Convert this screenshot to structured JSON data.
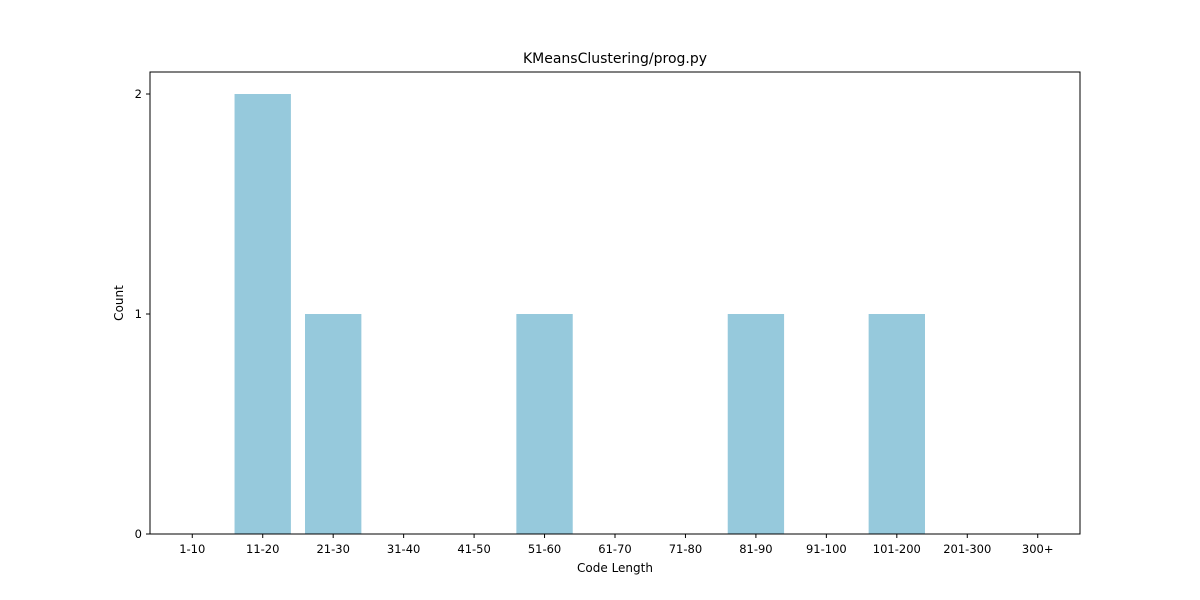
{
  "chart_data": {
    "type": "bar",
    "title": "KMeansClustering/prog.py",
    "xlabel": "Code Length",
    "ylabel": "Count",
    "categories": [
      "1-10",
      "11-20",
      "21-30",
      "31-40",
      "41-50",
      "51-60",
      "61-70",
      "71-80",
      "81-90",
      "91-100",
      "101-200",
      "201-300",
      "300+"
    ],
    "values": [
      0,
      2,
      1,
      0,
      0,
      1,
      0,
      0,
      1,
      0,
      1,
      0,
      0
    ],
    "ylim": [
      0,
      2.1
    ],
    "yticks": [
      0,
      1,
      2
    ],
    "grid": false,
    "legend": "none",
    "bar_color": "#96c9dc"
  }
}
